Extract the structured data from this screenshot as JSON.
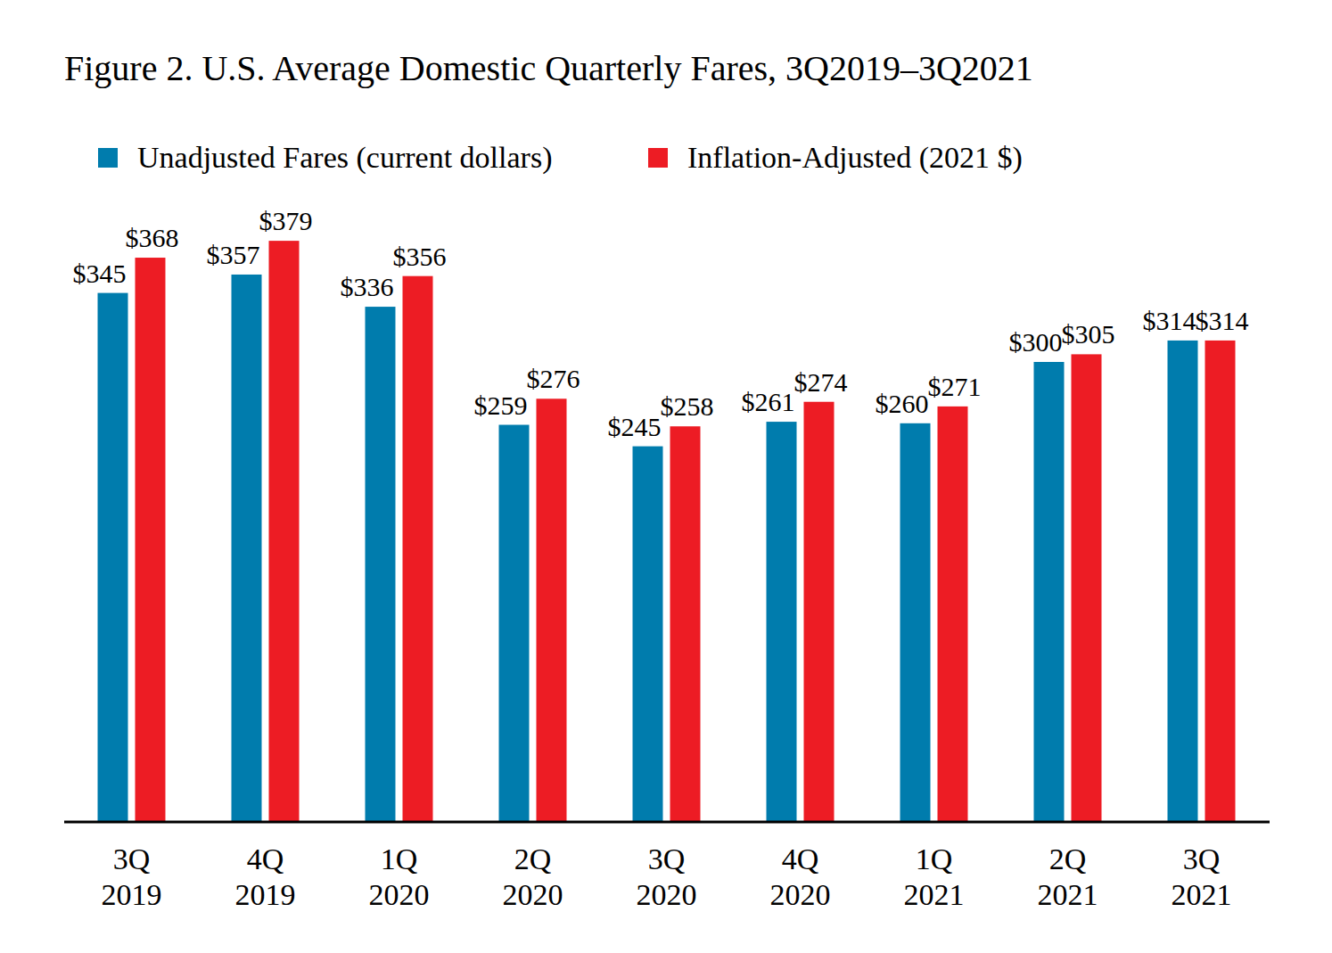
{
  "chart_data": {
    "type": "bar",
    "title": "Figure 2. U.S. Average Domestic Quarterly Fares, 3Q2019–3Q2021",
    "categories": [
      "3Q 2019",
      "4Q 2019",
      "1Q 2020",
      "2Q 2020",
      "3Q 2020",
      "4Q 2020",
      "1Q 2021",
      "2Q 2021",
      "3Q 2021"
    ],
    "series": [
      {
        "name": "Unadjusted Fares (current dollars)",
        "color": "#007cad",
        "values": [
          345,
          357,
          336,
          259,
          245,
          261,
          260,
          300,
          314
        ],
        "value_labels": [
          "$345",
          "$357",
          "$336",
          "$259",
          "$245",
          "$261",
          "$260",
          "$300",
          "$314"
        ]
      },
      {
        "name": "Inflation-Adjusted (2021 $)",
        "color": "#ed1c24",
        "values": [
          368,
          379,
          356,
          276,
          258,
          274,
          271,
          305,
          314
        ],
        "value_labels": [
          "$368",
          "$379",
          "$356",
          "$276",
          "$258",
          "$274",
          "$271",
          "$305",
          "$314"
        ]
      }
    ],
    "ylim": [
      0,
      400
    ],
    "data_labels": true,
    "tick_labels": "x",
    "legend": "top"
  }
}
